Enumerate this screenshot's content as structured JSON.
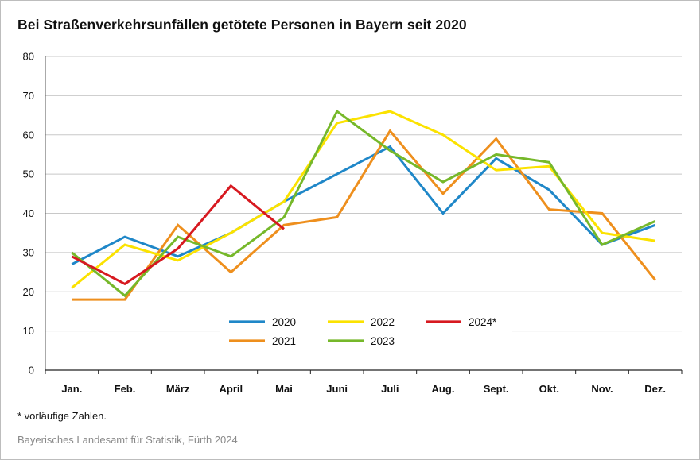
{
  "title": "Bei Straßenverkehrsunfällen getötete Personen in Bayern seit 2020",
  "footnote": "* vorläufige Zahlen.",
  "source": "Bayerisches Landesamt für Statistik, Fürth 2024",
  "chart_data": {
    "type": "line",
    "title": "Bei Straßenverkehrsunfällen getötete Personen in Bayern seit 2020",
    "xlabel": "",
    "ylabel": "",
    "ylim": [
      0,
      80
    ],
    "yticks": [
      0,
      10,
      20,
      30,
      40,
      50,
      60,
      70,
      80
    ],
    "grid": true,
    "legend_position": "bottom-center (inside plot)",
    "categories": [
      "Jan.",
      "Feb.",
      "März",
      "April",
      "Mai",
      "Juni",
      "Juli",
      "Aug.",
      "Sept.",
      "Okt.",
      "Nov.",
      "Dez."
    ],
    "series": [
      {
        "name": "2020",
        "color": "#1f87c8",
        "values": [
          27,
          34,
          29,
          35,
          43,
          50,
          57,
          40,
          54,
          46,
          32,
          37
        ]
      },
      {
        "name": "2021",
        "color": "#ee8f1d",
        "values": [
          18,
          18,
          37,
          25,
          37,
          39,
          61,
          45,
          59,
          41,
          40,
          23
        ]
      },
      {
        "name": "2022",
        "color": "#fbe200",
        "values": [
          21,
          32,
          28,
          35,
          43,
          63,
          66,
          60,
          51,
          52,
          35,
          33
        ]
      },
      {
        "name": "2023",
        "color": "#76b82a",
        "values": [
          30,
          19,
          34,
          29,
          39,
          66,
          56,
          48,
          55,
          53,
          32,
          38
        ]
      },
      {
        "name": "2024*",
        "color": "#d71920",
        "values": [
          29,
          22,
          31,
          47,
          36,
          null,
          null,
          null,
          null,
          null,
          null,
          null
        ]
      }
    ]
  }
}
